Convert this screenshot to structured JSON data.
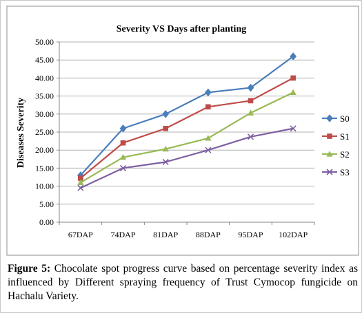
{
  "chart_data": {
    "type": "line",
    "title": "Severity VS Days after planting",
    "xlabel": "",
    "ylabel": "Diseases Severity",
    "categories": [
      "67DAP",
      "74DAP",
      "81DAP",
      "88DAP",
      "95DAP",
      "102DAP"
    ],
    "ylim": [
      0,
      50
    ],
    "ytick_step": 5,
    "ytick_labels": [
      "0.00",
      "5.00",
      "10.00",
      "15.00",
      "20.00",
      "25.00",
      "30.00",
      "35.00",
      "40.00",
      "45.00",
      "50.00"
    ],
    "grid": "horizontal",
    "legend_position": "right",
    "series": [
      {
        "name": "S0",
        "color": "#4A7EBB",
        "marker": "diamond",
        "values": [
          13,
          26,
          30,
          36,
          37.3,
          46
        ]
      },
      {
        "name": "S1",
        "color": "#BE4B48",
        "marker": "square",
        "values": [
          12.2,
          22,
          26,
          32,
          33.7,
          40
        ]
      },
      {
        "name": "S2",
        "color": "#98B954",
        "marker": "triangle",
        "values": [
          11,
          18,
          20.3,
          23.3,
          30.3,
          36
        ]
      },
      {
        "name": "S3",
        "color": "#7D60A0",
        "marker": "x",
        "values": [
          9.5,
          15,
          16.7,
          20,
          23.7,
          26
        ]
      }
    ]
  },
  "caption": {
    "label": "Figure 5:",
    "text": " Chocolate spot progress curve based on percentage severity index as influenced by Different spraying frequency of Trust Cymocop fungicide on Hachalu Variety."
  }
}
